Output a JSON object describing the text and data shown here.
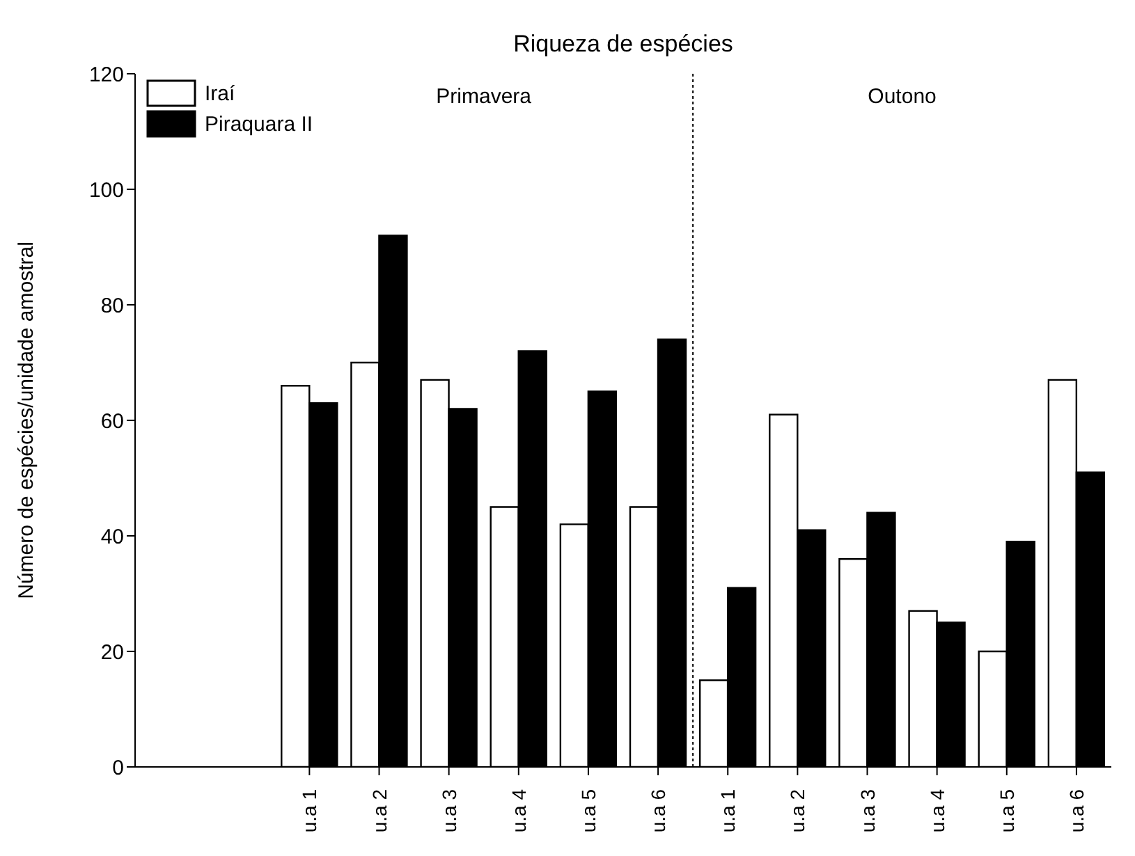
{
  "chart_data": {
    "type": "bar",
    "title": "Riqueza de espécies",
    "ylabel": "Número de espécies/unidade amostral",
    "categories": [
      null,
      null,
      "u.a 1",
      "u.a 2",
      "u.a 3",
      "u.a 4",
      "u.a 5",
      "u.a 6",
      "u.a 1",
      "u.a 2",
      "u.a 3",
      "u.a 4",
      "u.a 5",
      "u.a 6"
    ],
    "series": [
      {
        "name": "Iraí",
        "color": "#ffffff",
        "values": [
          null,
          null,
          66,
          70,
          67,
          45,
          42,
          45,
          15,
          61,
          36,
          27,
          20,
          67
        ]
      },
      {
        "name": "Piraquara II",
        "color": "#000000",
        "values": [
          null,
          null,
          63,
          92,
          62,
          72,
          65,
          74,
          31,
          41,
          44,
          25,
          39,
          51
        ]
      }
    ],
    "annotations": [
      "Primavera",
      "Outono"
    ],
    "ylim": [
      0,
      120
    ],
    "yticks": [
      0,
      20,
      40,
      60,
      80,
      100,
      120
    ],
    "grid": false,
    "legend": "top left"
  }
}
